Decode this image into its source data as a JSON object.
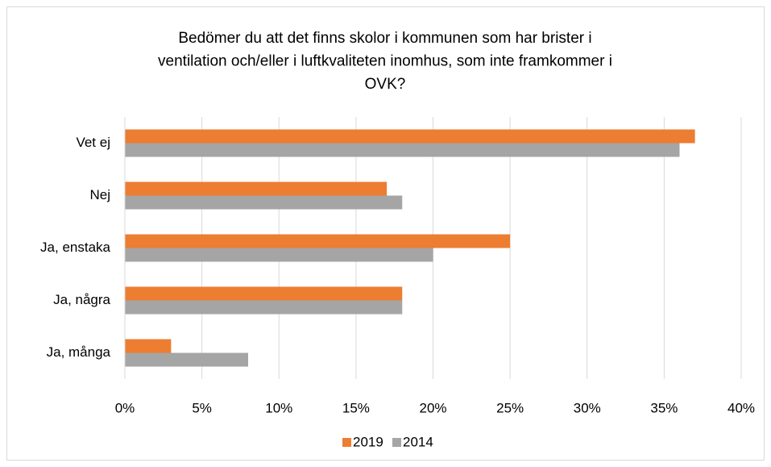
{
  "chart_data": {
    "type": "bar",
    "orientation": "horizontal",
    "title": [
      "Bedömer du att det finns skolor i kommunen som har brister i",
      "ventilation och/eller i luftkvaliteten inomhus, som inte framkommer i",
      "OVK?"
    ],
    "categories": [
      "Vet ej",
      "Nej",
      "Ja, enstaka",
      "Ja, några",
      "Ja, många"
    ],
    "series": [
      {
        "name": "2019",
        "color": "#ed7d31",
        "values": [
          37,
          17,
          25,
          18,
          3
        ]
      },
      {
        "name": "2014",
        "color": "#a5a5a5",
        "values": [
          36,
          18,
          20,
          18,
          8
        ]
      }
    ],
    "xlim": [
      0,
      40
    ],
    "xticks": [
      {
        "value": 0,
        "label": "0%"
      },
      {
        "value": 5,
        "label": "5%"
      },
      {
        "value": 10,
        "label": "10%"
      },
      {
        "value": 15,
        "label": "15%"
      },
      {
        "value": 20,
        "label": "20%"
      },
      {
        "value": 25,
        "label": "25%"
      },
      {
        "value": 30,
        "label": "30%"
      },
      {
        "value": 35,
        "label": "35%"
      },
      {
        "value": 40,
        "label": "40%"
      }
    ],
    "grid": true,
    "legend": "bottom"
  }
}
